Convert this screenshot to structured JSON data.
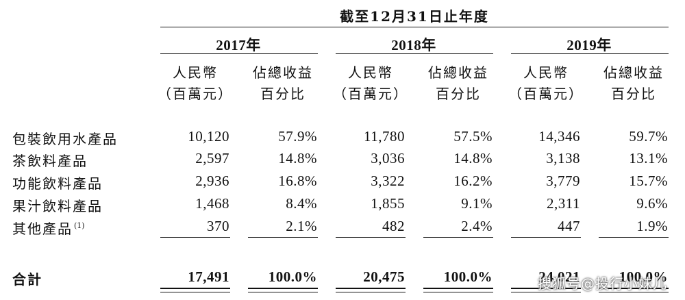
{
  "header": {
    "period": "截至12月31日止年度",
    "years": [
      "2017年",
      "2018年",
      "2019年"
    ],
    "col_a": [
      "人民幣",
      "（百萬元）"
    ],
    "col_b": [
      "佔總收益",
      "百分比"
    ]
  },
  "rows": [
    {
      "label": "包裝飲用水產品",
      "note": "",
      "v": [
        "10,120",
        "57.9%",
        "11,780",
        "57.5%",
        "14,346",
        "59.7%"
      ]
    },
    {
      "label": "茶飲料產品",
      "note": "",
      "v": [
        "2,597",
        "14.8%",
        "3,036",
        "14.8%",
        "3,138",
        "13.1%"
      ]
    },
    {
      "label": "功能飲料產品",
      "note": "",
      "v": [
        "2,936",
        "16.8%",
        "3,322",
        "16.2%",
        "3,779",
        "15.7%"
      ]
    },
    {
      "label": "果汁飲料產品",
      "note": "",
      "v": [
        "1,468",
        "8.4%",
        "1,855",
        "9.1%",
        "2,311",
        "9.6%"
      ]
    },
    {
      "label": "其他產品",
      "note": "(1)",
      "v": [
        "370",
        "2.1%",
        "482",
        "2.4%",
        "447",
        "1.9%"
      ]
    }
  ],
  "total": {
    "label": "合計",
    "v": [
      "17,491",
      "100.0%",
      "20,475",
      "100.0%",
      "24,021",
      "100.0%"
    ]
  },
  "watermark": "搜狐号@投行小妹儿"
}
